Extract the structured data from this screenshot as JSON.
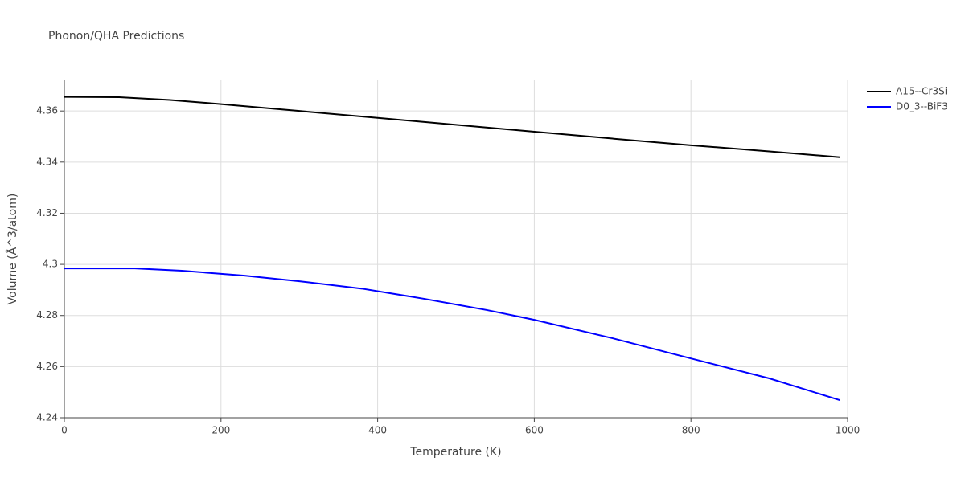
{
  "chart_data": {
    "type": "line",
    "title": "Phonon/QHA Predictions",
    "x_label": "Temperature (K)",
    "y_label": "Volume (Å^3/atom)",
    "xlim": [
      0,
      1000
    ],
    "xticks": [
      0,
      200,
      400,
      600,
      800,
      1000
    ],
    "ylim": [
      4.24,
      4.372
    ],
    "yticks": [
      4.24,
      4.26,
      4.28,
      4.3,
      4.32,
      4.34,
      4.36
    ],
    "grid": true,
    "legend": "top-right",
    "series": [
      {
        "name": "A15--Cr3Si",
        "color": "#000000",
        "x": [
          0,
          70,
          135,
          200,
          300,
          400,
          500,
          600,
          700,
          800,
          900,
          990
        ],
        "values": [
          4.3655,
          4.3654,
          4.3643,
          4.3627,
          4.36,
          4.3573,
          4.3546,
          4.3519,
          4.3492,
          4.3466,
          4.3442,
          4.3419
        ]
      },
      {
        "name": "D0_3--BiF3",
        "color": "#0000ff",
        "x": [
          0,
          90,
          150,
          230,
          300,
          380,
          460,
          540,
          600,
          700,
          800,
          900,
          990
        ],
        "values": [
          4.2984,
          4.2984,
          4.2975,
          4.2956,
          4.2934,
          4.2905,
          4.2865,
          4.2821,
          4.2783,
          4.2711,
          4.2632,
          4.2554,
          4.2469
        ]
      }
    ]
  }
}
